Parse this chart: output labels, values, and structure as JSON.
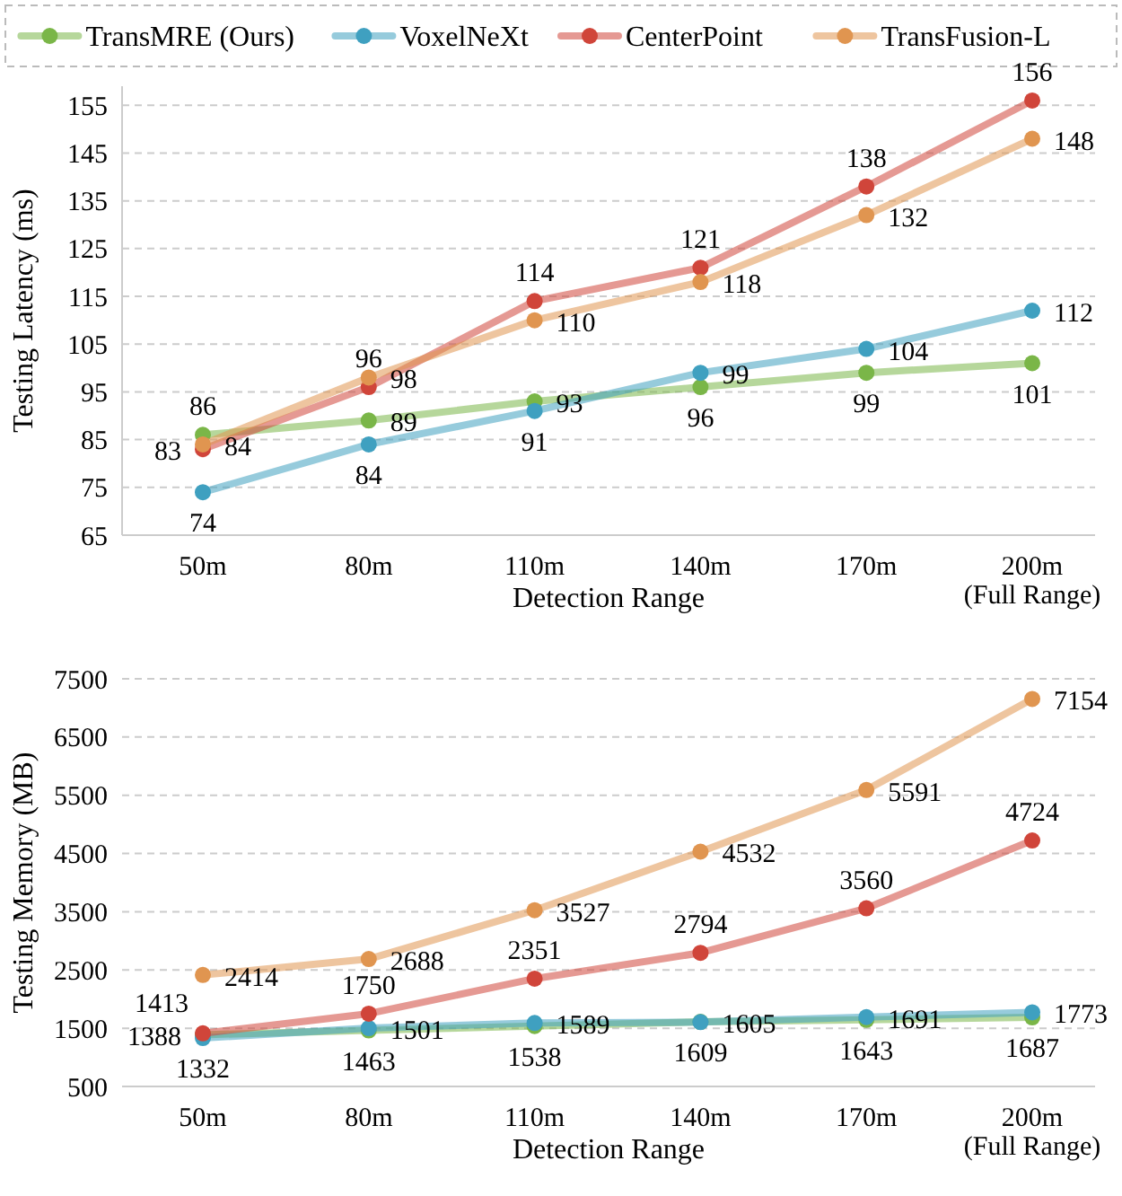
{
  "chart_data": [
    {
      "type": "line",
      "ylabel": "Testing Latency (ms)",
      "xlabel": "Detection Range",
      "categories": [
        "50m",
        "80m",
        "110m",
        "140m",
        "170m",
        "200m\n(Full Range)"
      ],
      "series": [
        {
          "name": "TransMRE (Ours)",
          "color": "#7ab648",
          "values": [
            86,
            89,
            93,
            96,
            99,
            101
          ]
        },
        {
          "name": "VoxelNeXt",
          "color": "#3fa0c0",
          "values": [
            74,
            84,
            91,
            99,
            104,
            112
          ]
        },
        {
          "name": "CenterPoint",
          "color": "#d0453a",
          "values": [
            83,
            96,
            114,
            121,
            138,
            156
          ]
        },
        {
          "name": "TransFusion-L",
          "color": "#e09550",
          "values": [
            84,
            98,
            110,
            118,
            132,
            148
          ]
        }
      ],
      "ylim": [
        65,
        159
      ],
      "yticks": [
        65,
        75,
        85,
        95,
        105,
        115,
        125,
        135,
        145,
        155
      ],
      "grid": "y",
      "marker": "circle",
      "line_style": "solid",
      "data_labels": true,
      "legend": "top"
    },
    {
      "type": "line",
      "ylabel": "Testing Memory (MB)",
      "xlabel": "Detection Range",
      "categories": [
        "50m",
        "80m",
        "110m",
        "140m",
        "170m",
        "200m\n(Full Range)"
      ],
      "series": [
        {
          "color": "#7ab648",
          "values": [
            1388,
            1463,
            1538,
            1609,
            1643,
            1687
          ]
        },
        {
          "color": "#3fa0c0",
          "values": [
            1332,
            1501,
            1589,
            1605,
            1691,
            1773
          ]
        },
        {
          "color": "#d0453a",
          "values": [
            1413,
            1750,
            2351,
            2794,
            3560,
            4724
          ]
        },
        {
          "color": "#e09550",
          "values": [
            2414,
            2688,
            3527,
            4532,
            5591,
            7154
          ]
        }
      ],
      "ylim": [
        500,
        7500
      ],
      "yticks": [
        500,
        1500,
        2500,
        3500,
        4500,
        5500,
        6500,
        7500
      ],
      "grid": "y",
      "marker": "circle",
      "line_style": "solid",
      "data_labels": true
    }
  ]
}
